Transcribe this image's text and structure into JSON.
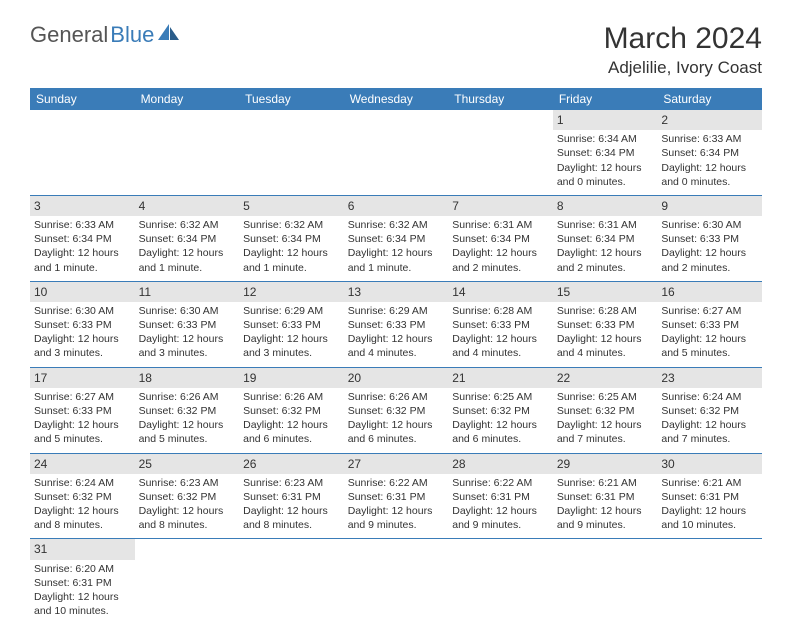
{
  "logo": {
    "text1": "General",
    "text2": "Blue"
  },
  "title": "March 2024",
  "location": "Adjelilie, Ivory Coast",
  "header_bg": "#3a7cb8",
  "header_fg": "#ffffff",
  "daynum_bg": "#e5e5e5",
  "border_color": "#3a7cb8",
  "days": [
    "Sunday",
    "Monday",
    "Tuesday",
    "Wednesday",
    "Thursday",
    "Friday",
    "Saturday"
  ],
  "weeks": [
    [
      null,
      null,
      null,
      null,
      null,
      {
        "n": "1",
        "sr": "Sunrise: 6:34 AM",
        "ss": "Sunset: 6:34 PM",
        "dl1": "Daylight: 12 hours",
        "dl2": "and 0 minutes."
      },
      {
        "n": "2",
        "sr": "Sunrise: 6:33 AM",
        "ss": "Sunset: 6:34 PM",
        "dl1": "Daylight: 12 hours",
        "dl2": "and 0 minutes."
      }
    ],
    [
      {
        "n": "3",
        "sr": "Sunrise: 6:33 AM",
        "ss": "Sunset: 6:34 PM",
        "dl1": "Daylight: 12 hours",
        "dl2": "and 1 minute."
      },
      {
        "n": "4",
        "sr": "Sunrise: 6:32 AM",
        "ss": "Sunset: 6:34 PM",
        "dl1": "Daylight: 12 hours",
        "dl2": "and 1 minute."
      },
      {
        "n": "5",
        "sr": "Sunrise: 6:32 AM",
        "ss": "Sunset: 6:34 PM",
        "dl1": "Daylight: 12 hours",
        "dl2": "and 1 minute."
      },
      {
        "n": "6",
        "sr": "Sunrise: 6:32 AM",
        "ss": "Sunset: 6:34 PM",
        "dl1": "Daylight: 12 hours",
        "dl2": "and 1 minute."
      },
      {
        "n": "7",
        "sr": "Sunrise: 6:31 AM",
        "ss": "Sunset: 6:34 PM",
        "dl1": "Daylight: 12 hours",
        "dl2": "and 2 minutes."
      },
      {
        "n": "8",
        "sr": "Sunrise: 6:31 AM",
        "ss": "Sunset: 6:34 PM",
        "dl1": "Daylight: 12 hours",
        "dl2": "and 2 minutes."
      },
      {
        "n": "9",
        "sr": "Sunrise: 6:30 AM",
        "ss": "Sunset: 6:33 PM",
        "dl1": "Daylight: 12 hours",
        "dl2": "and 2 minutes."
      }
    ],
    [
      {
        "n": "10",
        "sr": "Sunrise: 6:30 AM",
        "ss": "Sunset: 6:33 PM",
        "dl1": "Daylight: 12 hours",
        "dl2": "and 3 minutes."
      },
      {
        "n": "11",
        "sr": "Sunrise: 6:30 AM",
        "ss": "Sunset: 6:33 PM",
        "dl1": "Daylight: 12 hours",
        "dl2": "and 3 minutes."
      },
      {
        "n": "12",
        "sr": "Sunrise: 6:29 AM",
        "ss": "Sunset: 6:33 PM",
        "dl1": "Daylight: 12 hours",
        "dl2": "and 3 minutes."
      },
      {
        "n": "13",
        "sr": "Sunrise: 6:29 AM",
        "ss": "Sunset: 6:33 PM",
        "dl1": "Daylight: 12 hours",
        "dl2": "and 4 minutes."
      },
      {
        "n": "14",
        "sr": "Sunrise: 6:28 AM",
        "ss": "Sunset: 6:33 PM",
        "dl1": "Daylight: 12 hours",
        "dl2": "and 4 minutes."
      },
      {
        "n": "15",
        "sr": "Sunrise: 6:28 AM",
        "ss": "Sunset: 6:33 PM",
        "dl1": "Daylight: 12 hours",
        "dl2": "and 4 minutes."
      },
      {
        "n": "16",
        "sr": "Sunrise: 6:27 AM",
        "ss": "Sunset: 6:33 PM",
        "dl1": "Daylight: 12 hours",
        "dl2": "and 5 minutes."
      }
    ],
    [
      {
        "n": "17",
        "sr": "Sunrise: 6:27 AM",
        "ss": "Sunset: 6:33 PM",
        "dl1": "Daylight: 12 hours",
        "dl2": "and 5 minutes."
      },
      {
        "n": "18",
        "sr": "Sunrise: 6:26 AM",
        "ss": "Sunset: 6:32 PM",
        "dl1": "Daylight: 12 hours",
        "dl2": "and 5 minutes."
      },
      {
        "n": "19",
        "sr": "Sunrise: 6:26 AM",
        "ss": "Sunset: 6:32 PM",
        "dl1": "Daylight: 12 hours",
        "dl2": "and 6 minutes."
      },
      {
        "n": "20",
        "sr": "Sunrise: 6:26 AM",
        "ss": "Sunset: 6:32 PM",
        "dl1": "Daylight: 12 hours",
        "dl2": "and 6 minutes."
      },
      {
        "n": "21",
        "sr": "Sunrise: 6:25 AM",
        "ss": "Sunset: 6:32 PM",
        "dl1": "Daylight: 12 hours",
        "dl2": "and 6 minutes."
      },
      {
        "n": "22",
        "sr": "Sunrise: 6:25 AM",
        "ss": "Sunset: 6:32 PM",
        "dl1": "Daylight: 12 hours",
        "dl2": "and 7 minutes."
      },
      {
        "n": "23",
        "sr": "Sunrise: 6:24 AM",
        "ss": "Sunset: 6:32 PM",
        "dl1": "Daylight: 12 hours",
        "dl2": "and 7 minutes."
      }
    ],
    [
      {
        "n": "24",
        "sr": "Sunrise: 6:24 AM",
        "ss": "Sunset: 6:32 PM",
        "dl1": "Daylight: 12 hours",
        "dl2": "and 8 minutes."
      },
      {
        "n": "25",
        "sr": "Sunrise: 6:23 AM",
        "ss": "Sunset: 6:32 PM",
        "dl1": "Daylight: 12 hours",
        "dl2": "and 8 minutes."
      },
      {
        "n": "26",
        "sr": "Sunrise: 6:23 AM",
        "ss": "Sunset: 6:31 PM",
        "dl1": "Daylight: 12 hours",
        "dl2": "and 8 minutes."
      },
      {
        "n": "27",
        "sr": "Sunrise: 6:22 AM",
        "ss": "Sunset: 6:31 PM",
        "dl1": "Daylight: 12 hours",
        "dl2": "and 9 minutes."
      },
      {
        "n": "28",
        "sr": "Sunrise: 6:22 AM",
        "ss": "Sunset: 6:31 PM",
        "dl1": "Daylight: 12 hours",
        "dl2": "and 9 minutes."
      },
      {
        "n": "29",
        "sr": "Sunrise: 6:21 AM",
        "ss": "Sunset: 6:31 PM",
        "dl1": "Daylight: 12 hours",
        "dl2": "and 9 minutes."
      },
      {
        "n": "30",
        "sr": "Sunrise: 6:21 AM",
        "ss": "Sunset: 6:31 PM",
        "dl1": "Daylight: 12 hours",
        "dl2": "and 10 minutes."
      }
    ],
    [
      {
        "n": "31",
        "sr": "Sunrise: 6:20 AM",
        "ss": "Sunset: 6:31 PM",
        "dl1": "Daylight: 12 hours",
        "dl2": "and 10 minutes."
      },
      null,
      null,
      null,
      null,
      null,
      null
    ]
  ]
}
